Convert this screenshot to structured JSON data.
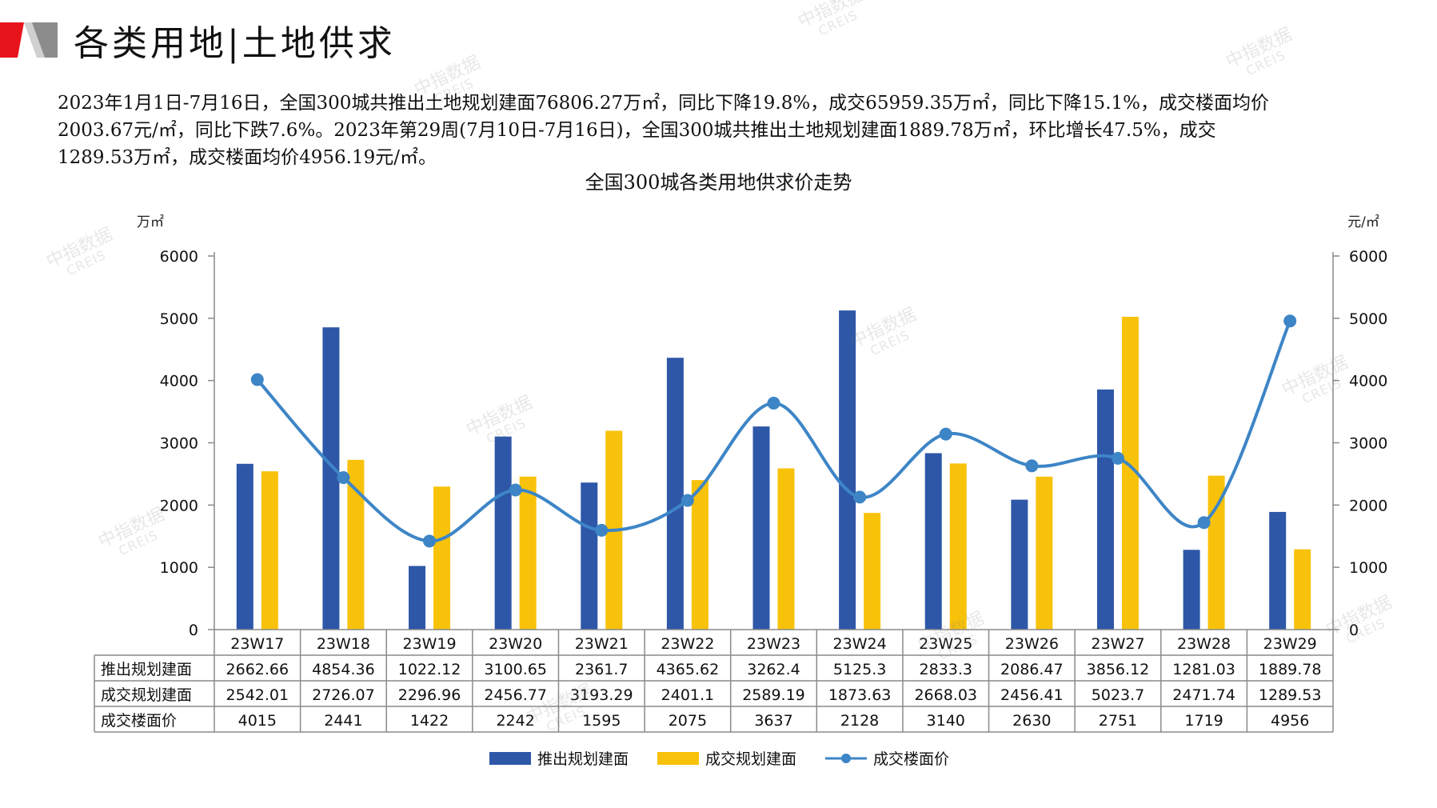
{
  "header": {
    "title": "各类用地|土地供求",
    "colors": {
      "red": "#e8141b",
      "gray": "#7f7f7f"
    }
  },
  "summary": {
    "lines": [
      "2023年1月1日-7月16日，全国300城共推出土地规划建面76806.27万㎡，同比下降19.8%，成交65959.35万㎡，同比下降15.1%，成交楼面均价",
      "2003.67元/㎡，同比下跌7.6%。2023年第29周(7月10日-7月16日)，全国300城共推出土地规划建面1889.78万㎡，环比增长47.5%，成交",
      "1289.53万㎡，成交楼面均价4956.19元/㎡。"
    ]
  },
  "watermark": {
    "cn": "中指数据",
    "en": "CREIS"
  },
  "chart_data": {
    "type": "bar",
    "title": "全国300城各类用地供求价走势",
    "categories": [
      "23W17",
      "23W18",
      "23W19",
      "23W20",
      "23W21",
      "23W22",
      "23W23",
      "23W24",
      "23W25",
      "23W26",
      "23W27",
      "23W28",
      "23W29"
    ],
    "left_unit": "万㎡",
    "right_unit": "元/㎡",
    "ylim": [
      0,
      6000
    ],
    "y2lim": [
      0,
      6000
    ],
    "yticks": [
      0,
      1000,
      2000,
      3000,
      4000,
      5000,
      6000
    ],
    "legend_position": "bottom",
    "series": [
      {
        "name": "推出规划建面",
        "kind": "bar",
        "axis": "left",
        "color": "#2e57a8",
        "values": [
          2662.66,
          4854.36,
          1022.12,
          3100.65,
          2361.7,
          4365.62,
          3262.4,
          5125.3,
          2833.3,
          2086.47,
          3856.12,
          1281.03,
          1889.78
        ],
        "labels": [
          "2662.66",
          "4854.36",
          "1022.12",
          "3100.65",
          "2361.7",
          "4365.62",
          "3262.4",
          "5125.3",
          "2833.3",
          "2086.47",
          "3856.12",
          "1281.03",
          "1889.78"
        ]
      },
      {
        "name": "成交规划建面",
        "kind": "bar",
        "axis": "left",
        "color": "#f9c20a",
        "values": [
          2542.01,
          2726.07,
          2296.96,
          2456.77,
          3193.29,
          2401.1,
          2589.19,
          1873.63,
          2668.03,
          2456.41,
          5023.7,
          2471.74,
          1289.53
        ],
        "labels": [
          "2542.01",
          "2726.07",
          "2296.96",
          "2456.77",
          "3193.29",
          "2401.1",
          "2589.19",
          "1873.63",
          "2668.03",
          "2456.41",
          "5023.7",
          "2471.74",
          "1289.53"
        ]
      },
      {
        "name": "成交楼面价",
        "kind": "line",
        "axis": "right",
        "color": "#3d85c6",
        "values": [
          4015,
          2441,
          1422,
          2242,
          1595,
          2075,
          3637,
          2128,
          3140,
          2630,
          2751,
          1719,
          4956
        ],
        "labels": [
          "4015",
          "2441",
          "1422",
          "2242",
          "1595",
          "2075",
          "3637",
          "2128",
          "3140",
          "2630",
          "2751",
          "1719",
          "4956"
        ]
      }
    ]
  }
}
